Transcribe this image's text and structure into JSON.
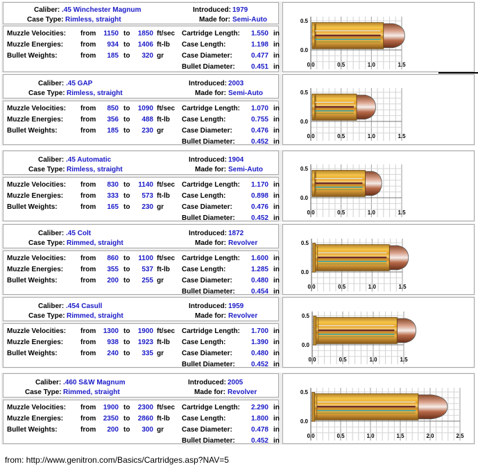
{
  "labels": {
    "caliber": "Caliber:",
    "case_type": "Case Type:",
    "introduced": "Introduced:",
    "made_for": "Made for:",
    "muzzle_velocities": "Muzzle Velocities:",
    "muzzle_energies": "Muzzle Energies:",
    "bullet_weights": "Bullet Weights:",
    "from": "from",
    "to": "to",
    "cartridge_length": "Cartridge Length:",
    "case_length": "Case Length:",
    "case_diameter": "Case Diameter:",
    "bullet_diameter": "Bullet Diameter:",
    "unit_velocity": "ft/sec",
    "unit_energy": "ft-lb",
    "unit_weight": "gr",
    "unit_length": "in"
  },
  "cartridges": [
    {
      "caliber": ".45 Winchester Magnum",
      "case_type": "Rimless, straight",
      "introduced": "1979",
      "made_for": "Semi-Auto",
      "velocity": [
        "1150",
        "1850"
      ],
      "energy": [
        "934",
        "1406"
      ],
      "weight": [
        "185",
        "320"
      ],
      "cartridge_length": "1.550",
      "case_length": "1.198",
      "case_diameter": "0.477",
      "bullet_diameter": "0.451"
    },
    {
      "caliber": ".45 GAP",
      "case_type": "Rimless, straight",
      "introduced": "2003",
      "made_for": "Semi-Auto",
      "velocity": [
        "850",
        "1090"
      ],
      "energy": [
        "356",
        "488"
      ],
      "weight": [
        "185",
        "230"
      ],
      "cartridge_length": "1.070",
      "case_length": "0.755",
      "case_diameter": "0.476",
      "bullet_diameter": "0.452"
    },
    {
      "caliber": ".45 Automatic",
      "case_type": "Rimless, straight",
      "introduced": "1904",
      "made_for": "Semi-Auto",
      "velocity": [
        "830",
        "1140"
      ],
      "energy": [
        "333",
        "573"
      ],
      "weight": [
        "165",
        "230"
      ],
      "cartridge_length": "1.170",
      "case_length": "0.898",
      "case_diameter": "0.476",
      "bullet_diameter": "0.452"
    },
    {
      "caliber": ".45 Colt",
      "case_type": "Rimmed, straight",
      "introduced": "1872",
      "made_for": "Revolver",
      "velocity": [
        "860",
        "1100"
      ],
      "energy": [
        "355",
        "537"
      ],
      "weight": [
        "200",
        "255"
      ],
      "cartridge_length": "1.600",
      "case_length": "1.285",
      "case_diameter": "0.480",
      "bullet_diameter": "0.454"
    },
    {
      "caliber": ".454 Casull",
      "case_type": "Rimmed, straight",
      "introduced": "1959",
      "made_for": "Revolver",
      "velocity": [
        "1300",
        "1900"
      ],
      "energy": [
        "938",
        "1923"
      ],
      "weight": [
        "240",
        "335"
      ],
      "cartridge_length": "1.700",
      "case_length": "1.390",
      "case_diameter": "0.480",
      "bullet_diameter": "0.452"
    },
    {
      "caliber": ".460 S&W Magnum",
      "case_type": "Rimmed, straight",
      "introduced": "2005",
      "made_for": "Revolver",
      "velocity": [
        "1900",
        "2300"
      ],
      "energy": [
        "2350",
        "2860"
      ],
      "weight": [
        "200",
        "300"
      ],
      "cartridge_length": "2.290",
      "case_length": "1.800",
      "case_diameter": "0.478",
      "bullet_diameter": "0.452"
    }
  ],
  "chart_data": [
    {
      "type": "diagram",
      "xlim": [
        0,
        1.5
      ],
      "ylim": [
        0,
        0.5
      ],
      "xticks": [
        "0.0",
        "0.5",
        "1.0",
        "1.5"
      ],
      "yticks": [
        "0.0",
        "0.5"
      ],
      "grid": true
    },
    {
      "type": "diagram",
      "xlim": [
        0,
        1.5
      ],
      "ylim": [
        0,
        0.5
      ],
      "xticks": [
        "0.0",
        "0.5",
        "1.0",
        "1.5"
      ],
      "yticks": [
        "0.0",
        "0.5"
      ],
      "grid": true
    },
    {
      "type": "diagram",
      "xlim": [
        0,
        1.5
      ],
      "ylim": [
        0,
        0.5
      ],
      "xticks": [
        "0.0",
        "0.5",
        "1.0",
        "1.5"
      ],
      "yticks": [
        "0.0",
        "0.5"
      ],
      "grid": true
    },
    {
      "type": "diagram",
      "xlim": [
        0,
        1.5
      ],
      "ylim": [
        0,
        0.5
      ],
      "xticks": [
        "0.0",
        "0.5",
        "1.0",
        "1.5"
      ],
      "yticks": [
        "0.0",
        "0.5"
      ],
      "grid": true
    },
    {
      "type": "diagram",
      "xlim": [
        0,
        1.5
      ],
      "ylim": [
        0,
        0.5
      ],
      "xticks": [
        "0.0",
        "0.5",
        "1.0",
        "1.5"
      ],
      "yticks": [
        "0.0",
        "0.5"
      ],
      "grid": true
    },
    {
      "type": "diagram",
      "xlim": [
        0,
        2.5
      ],
      "ylim": [
        0,
        0.5
      ],
      "xticks": [
        "0.0",
        "0.5",
        "1.0",
        "1.5",
        "2.0",
        "2.5"
      ],
      "yticks": [
        "0.0",
        "0.5"
      ],
      "grid": true
    }
  ],
  "source": "from: http://www.genitron.com/Basics/Cartridges.asp?NAV=5"
}
